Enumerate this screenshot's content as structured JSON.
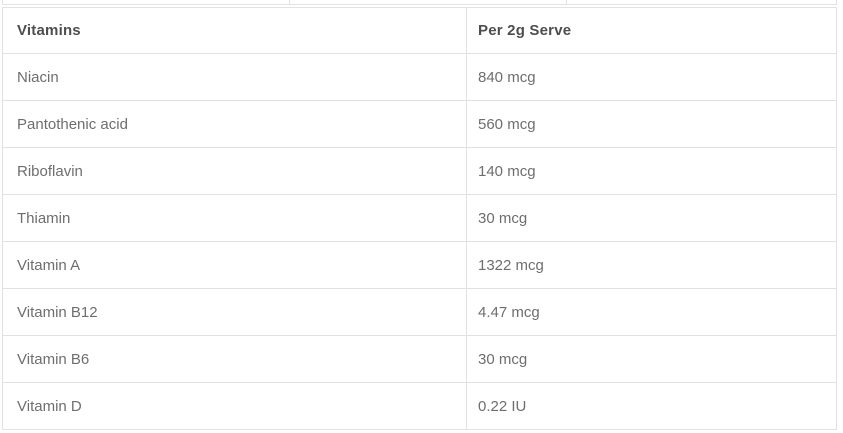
{
  "colors": {
    "background": "#ffffff",
    "table_border": "#e1e1e1",
    "header_text": "#4e4e4e",
    "body_text": "#6e6e6e"
  },
  "table": {
    "columns": [
      {
        "label": "Vitamins"
      },
      {
        "label": "Per 2g Serve"
      }
    ],
    "rows": [
      {
        "name": "Niacin",
        "value": "840 mcg"
      },
      {
        "name": "Pantothenic acid",
        "value": "560 mcg"
      },
      {
        "name": "Riboflavin",
        "value": "140 mcg"
      },
      {
        "name": "Thiamin",
        "value": "30 mcg"
      },
      {
        "name": "Vitamin A",
        "value": "1322 mcg"
      },
      {
        "name": "Vitamin B12",
        "value": "4.47 mcg"
      },
      {
        "name": "Vitamin B6",
        "value": "30 mcg"
      },
      {
        "name": "Vitamin D",
        "value": "0.22 IU"
      }
    ]
  }
}
